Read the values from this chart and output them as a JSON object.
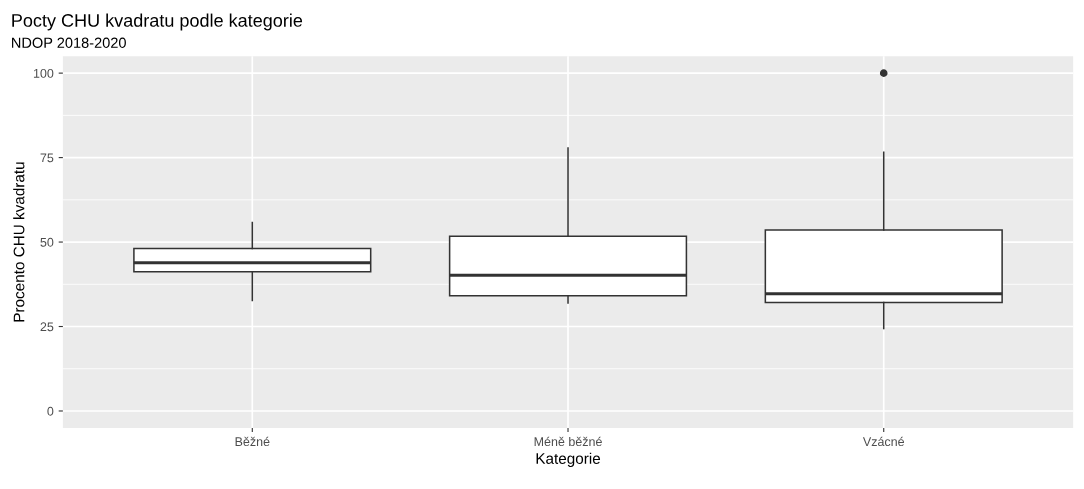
{
  "chart_data": {
    "type": "box",
    "title": "Pocty CHU kvadratu podle kategorie",
    "subtitle": "NDOP 2018-2020",
    "xlabel": "Kategorie",
    "ylabel": "Procento CHU kvadratu",
    "categories": [
      "Běžné",
      "Méně běžné",
      "Vzácné"
    ],
    "boxes": [
      {
        "low": 32.7,
        "q1": 41.2,
        "median": 43.9,
        "q3": 48.1,
        "high": 55.8
      },
      {
        "low": 32.0,
        "q1": 34.1,
        "median": 40.2,
        "q3": 51.7,
        "high": 77.8
      },
      {
        "low": 24.4,
        "q1": 32.1,
        "median": 34.7,
        "q3": 53.6,
        "high": 76.6,
        "outliers": [
          100
        ]
      }
    ],
    "ylim": [
      -5,
      105
    ],
    "yticks": [
      0,
      25,
      50,
      75,
      100
    ],
    "grid": true
  }
}
